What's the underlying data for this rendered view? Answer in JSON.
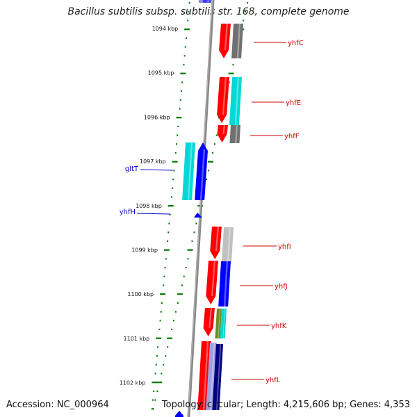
{
  "title": "Bacillus subtilis subsp. subtilis str. 168, complete genome",
  "footer": {
    "accession": "Accession: NC_000964",
    "summary": "Topology: circular; Length: 4,215,606 bp; Genes: 4,353"
  },
  "colors": {
    "cds": "#ff0000",
    "cds_reverse": "#0000ff",
    "cyan": "#00d8d8",
    "gray": "#707070",
    "light_gray": "#c0c0c0",
    "olive": "#6b8e23",
    "navy": "#000080",
    "tick": "#007700",
    "label_forward": "#cc0000",
    "label_reverse": "#0000cc"
  },
  "kbp_labels": [
    "1094 kbp",
    "1095 kbp",
    "1096 kbp",
    "1097 kbp",
    "1098 kbp",
    "1099 kbp",
    "1100 kbp",
    "1101 kbp",
    "1102 kbp"
  ],
  "gene_labels": [
    {
      "name": "yhfC",
      "strand": "forward"
    },
    {
      "name": "yhfE",
      "strand": "forward"
    },
    {
      "name": "yhfF",
      "strand": "forward"
    },
    {
      "name": "gltT",
      "strand": "reverse"
    },
    {
      "name": "yhfH",
      "strand": "reverse"
    },
    {
      "name": "yhfI",
      "strand": "forward"
    },
    {
      "name": "yhfJ",
      "strand": "forward"
    },
    {
      "name": "yhfK",
      "strand": "forward"
    },
    {
      "name": "yhfL",
      "strand": "forward"
    }
  ]
}
